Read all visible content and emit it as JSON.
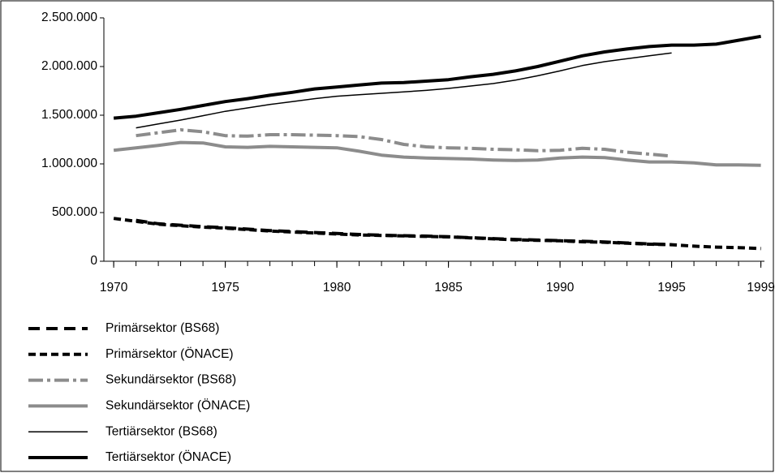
{
  "chart_data": {
    "type": "line",
    "x": [
      1970,
      1971,
      1972,
      1973,
      1974,
      1975,
      1976,
      1977,
      1978,
      1979,
      1980,
      1981,
      1982,
      1983,
      1984,
      1985,
      1986,
      1987,
      1988,
      1989,
      1990,
      1991,
      1992,
      1993,
      1994,
      1995,
      1996,
      1997,
      1998,
      1999
    ],
    "xlim": [
      1969.56,
      1999.16
    ],
    "xticks": [
      1970,
      1975,
      1980,
      1985,
      1990,
      1995,
      1999
    ],
    "ylim": [
      0,
      2500000
    ],
    "yticks": [
      0,
      {
        "value": 500000,
        "label": "500.000"
      },
      {
        "value": 1000000,
        "label": "1.000.000"
      },
      {
        "value": 1500000,
        "label": "1.500.000"
      },
      {
        "value": 2000000,
        "label": "2.000.000"
      },
      {
        "value": 2500000,
        "label": "2.500.000"
      }
    ],
    "series": [
      {
        "name": "Primärsektor (BS68)",
        "color": "#000000",
        "width": 4,
        "dash": "14 8",
        "values": [
          null,
          420000,
          385000,
          370000,
          355000,
          345000,
          330000,
          315000,
          305000,
          295000,
          285000,
          275000,
          268000,
          262000,
          258000,
          252000,
          242000,
          232000,
          224000,
          218000,
          212000,
          205000,
          198000,
          188000,
          178000,
          170000,
          null,
          null,
          null,
          null
        ]
      },
      {
        "name": "Primärsektor (ÖNACE)",
        "color": "#000000",
        "width": 4,
        "dash": "9 5",
        "values": [
          440000,
          410000,
          380000,
          365000,
          350000,
          340000,
          325000,
          310000,
          300000,
          290000,
          280000,
          270000,
          265000,
          260000,
          255000,
          250000,
          240000,
          230000,
          220000,
          215000,
          210000,
          200000,
          195000,
          185000,
          175000,
          170000,
          155000,
          145000,
          140000,
          130000
        ]
      },
      {
        "name": "Sekundärsektor (BS68)",
        "color": "#8c8c8c",
        "width": 4,
        "dash": "18 5 4 5",
        "values": [
          null,
          1290000,
          1320000,
          1350000,
          1330000,
          1290000,
          1285000,
          1300000,
          1300000,
          1295000,
          1290000,
          1280000,
          1250000,
          1200000,
          1175000,
          1165000,
          1160000,
          1150000,
          1145000,
          1135000,
          1140000,
          1160000,
          1150000,
          1120000,
          1100000,
          1080000,
          null,
          null,
          null,
          null
        ]
      },
      {
        "name": "Sekundärsektor (ÖNACE)",
        "color": "#8c8c8c",
        "width": 4,
        "dash": "none",
        "values": [
          1140000,
          1165000,
          1190000,
          1220000,
          1215000,
          1175000,
          1170000,
          1180000,
          1175000,
          1170000,
          1165000,
          1130000,
          1090000,
          1070000,
          1060000,
          1055000,
          1050000,
          1040000,
          1035000,
          1040000,
          1060000,
          1070000,
          1065000,
          1040000,
          1020000,
          1020000,
          1010000,
          990000,
          990000,
          985000
        ]
      },
      {
        "name": "Tertiärsektor (BS68)",
        "color": "#000000",
        "width": 1.5,
        "dash": "none",
        "values": [
          null,
          1370000,
          1410000,
          1450000,
          1495000,
          1540000,
          1575000,
          1610000,
          1640000,
          1670000,
          1695000,
          1710000,
          1725000,
          1740000,
          1755000,
          1775000,
          1800000,
          1825000,
          1860000,
          1905000,
          1955000,
          2010000,
          2050000,
          2080000,
          2110000,
          2140000,
          null,
          null,
          null,
          null
        ]
      },
      {
        "name": "Tertiärsektor (ÖNACE)",
        "color": "#000000",
        "width": 4,
        "dash": "none",
        "values": [
          1470000,
          1490000,
          1525000,
          1560000,
          1600000,
          1640000,
          1670000,
          1705000,
          1735000,
          1770000,
          1790000,
          1810000,
          1830000,
          1835000,
          1850000,
          1865000,
          1895000,
          1920000,
          1955000,
          2000000,
          2055000,
          2110000,
          2150000,
          2180000,
          2205000,
          2220000,
          2220000,
          2230000,
          2270000,
          2310000
        ]
      }
    ]
  }
}
